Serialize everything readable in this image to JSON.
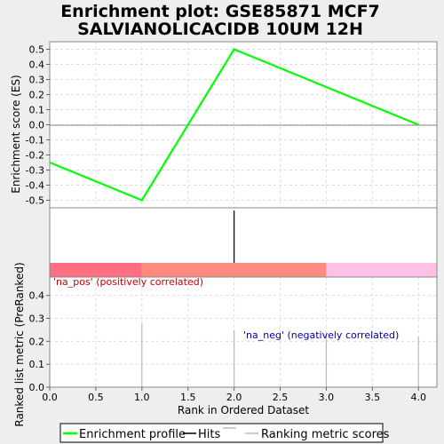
{
  "chart_data": {
    "type": "line",
    "title_line1": "Enrichment plot: GSE85871 MCF7",
    "title_line2": "SALVIANOLICACIDB 10UM 12H",
    "xlabel": "Rank in Ordered Dataset",
    "ylabel_top": "Enrichment score (ES)",
    "ylabel_bottom": "Ranked list metric (PreRanked)",
    "xlim": [
      0,
      4.2
    ],
    "es_ylim": [
      -0.55,
      0.55
    ],
    "metric_ylim": [
      0,
      0.48
    ],
    "x_ticks": [
      "0.0",
      "0.5",
      "1.0",
      "1.5",
      "2.0",
      "2.5",
      "3.0",
      "3.5",
      "4.0"
    ],
    "x_tick_values": [
      0,
      0.5,
      1.0,
      1.5,
      2.0,
      2.5,
      3.0,
      3.5,
      4.0
    ],
    "es_ticks": [
      "0.5",
      "0.4",
      "0.3",
      "0.2",
      "0.1",
      "0.0",
      "-0.1",
      "-0.2",
      "-0.3",
      "-0.4",
      "-0.5"
    ],
    "es_tick_values": [
      0.5,
      0.4,
      0.3,
      0.2,
      0.1,
      0.0,
      -0.1,
      -0.2,
      -0.3,
      -0.4,
      -0.5
    ],
    "metric_ticks": [
      "0.4",
      "0.3",
      "0.2",
      "0.1",
      "0.0"
    ],
    "metric_tick_values": [
      0.4,
      0.3,
      0.2,
      0.1,
      0.0
    ],
    "enrichment_profile": {
      "x": [
        0,
        1,
        2,
        3,
        4
      ],
      "y": [
        -0.25,
        -0.5,
        0.5,
        0.25,
        0.0
      ]
    },
    "hits": [
      2
    ],
    "ranking_metric": {
      "x": [
        1,
        2,
        3,
        4
      ],
      "y": [
        0.28,
        0.25,
        0.23,
        0.22
      ]
    },
    "heatmap": [
      {
        "x0": 0,
        "x1": 1,
        "color": "#ff6f7f"
      },
      {
        "x0": 1,
        "x1": 3,
        "color": "#ff8a80"
      },
      {
        "x0": 3,
        "x1": 4.2,
        "color": "#ffc0e6"
      }
    ],
    "annotation_pos": "'na_pos' (positively correlated)",
    "annotation_neg": "'na_neg' (negatively correlated)",
    "legend": [
      "Enrichment profile",
      "Hits",
      "Ranking metric scores"
    ],
    "colors": {
      "profile": "#00ff00",
      "hits": "#000000",
      "metric": "#bbbbbb",
      "annot_pos": "#cc0000",
      "annot_neg": "#0000aa"
    },
    "grid": true
  }
}
